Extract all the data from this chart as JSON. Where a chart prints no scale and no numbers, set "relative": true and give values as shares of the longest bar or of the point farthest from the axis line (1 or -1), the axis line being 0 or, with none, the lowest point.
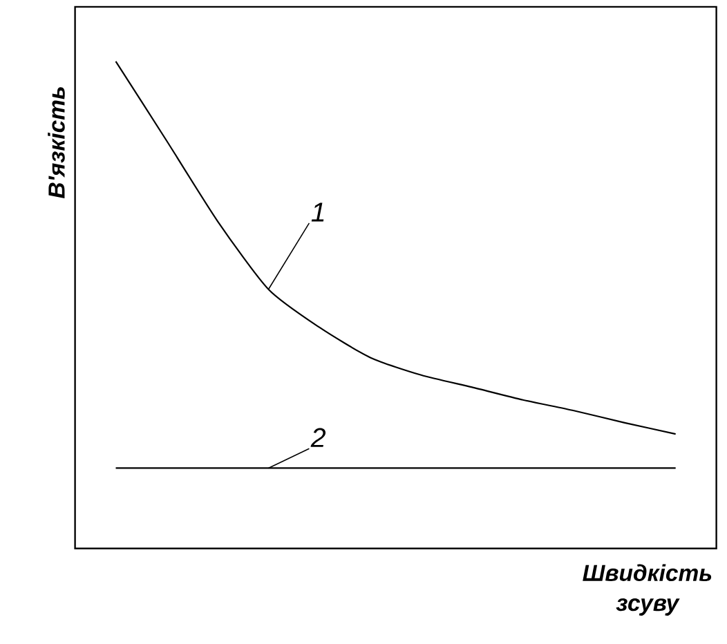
{
  "chart_data": {
    "type": "line",
    "relative": true,
    "xlabel": "Швидкість зсуву",
    "ylabel": "В'язкість",
    "categories": [
      null,
      null,
      null,
      null,
      null,
      null,
      null,
      null,
      null,
      null,
      null,
      null
    ],
    "marker": "none",
    "line_style": "solid",
    "series": [
      {
        "name": "1",
        "color": "#000000",
        "values": [
          1.0,
          0.837,
          0.672,
          0.532,
          0.454,
          0.392,
          0.356,
          0.331,
          0.305,
          0.283,
          0.258,
          0.235
        ]
      },
      {
        "name": "2",
        "color": "#000000",
        "values": [
          0.165,
          0.165,
          0.165,
          0.165,
          0.165,
          0.165,
          0.165,
          0.165,
          0.165,
          0.165,
          0.165,
          0.165
        ]
      }
    ]
  }
}
